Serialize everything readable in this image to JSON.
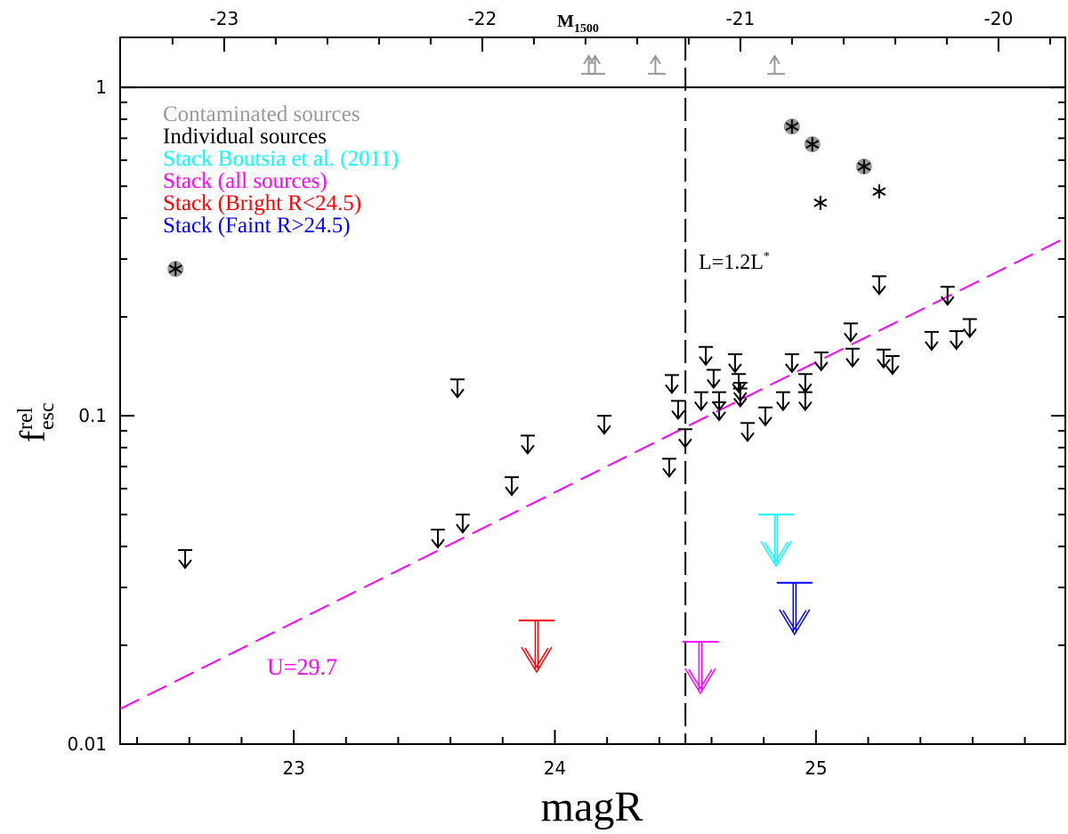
{
  "chart_data": {
    "type": "scatter",
    "x_label": "magR",
    "y_label": {
      "base": "f",
      "sup": "rel",
      "sub": "esc"
    },
    "x2_label": {
      "base": "M",
      "sub": "1500"
    },
    "xlim": [
      22.335,
      25.955
    ],
    "xticks": [
      23,
      24,
      25
    ],
    "xminorticks": [
      22.4,
      22.6,
      22.8,
      23.2,
      23.4,
      23.6,
      23.8,
      24.2,
      24.4,
      24.6,
      24.8,
      25.2,
      25.4,
      25.6,
      25.8
    ],
    "x2lim": [
      -23.403,
      -19.741
    ],
    "x2ticks": [
      -23,
      -22,
      -21,
      -20
    ],
    "x2minorticks": [
      -23.2,
      -22.8,
      -22.6,
      -22.4,
      -22.2,
      -21.8,
      -21.6,
      -21.4,
      -21.2,
      -20.8,
      -20.6,
      -20.4,
      -20.2,
      -19.8
    ],
    "ylim": [
      0.01,
      1.42
    ],
    "yticks": [
      0.01,
      0.1,
      1
    ],
    "yminorticks": [
      0.02,
      0.03,
      0.04,
      0.05,
      0.06,
      0.07,
      0.08,
      0.09,
      0.2,
      0.3,
      0.4,
      0.5,
      0.6,
      0.7,
      0.8,
      0.9
    ],
    "log_y": true,
    "legend": "upper left",
    "series": [
      {
        "name": "Contaminated sources",
        "color": "#999999",
        "marker": "star-circle",
        "x": [
          22.547,
          24.908,
          24.986,
          25.184
        ],
        "values": [
          0.28,
          0.76,
          0.671,
          0.574
        ]
      },
      {
        "color": "#999999",
        "marker": "lower-limit",
        "x": [
          24.135,
          24.159,
          24.39,
          24.847
        ],
        "values": [
          1.1,
          1.1,
          1.1,
          1.1
        ]
      },
      {
        "name": "Individual sources",
        "color": "#000000",
        "marker": "star",
        "x": [
          25.017,
          25.242
        ],
        "values": [
          0.445,
          0.482
        ]
      },
      {
        "color": "#000000",
        "marker": "upper-limit",
        "x": [
          22.584,
          23.627,
          23.552,
          23.647,
          23.835,
          23.896,
          24.189,
          24.448,
          24.438,
          24.472,
          24.499,
          24.56,
          24.578,
          24.608,
          24.629,
          24.629,
          24.69,
          24.704,
          24.71,
          24.71,
          24.738,
          24.806,
          24.874,
          24.908,
          24.959,
          24.959,
          25.02,
          25.133,
          25.14,
          25.242,
          25.259,
          25.293,
          25.443,
          25.504,
          25.538,
          25.589
        ],
        "values": [
          0.039,
          0.129,
          0.045,
          0.05,
          0.065,
          0.087,
          0.1,
          0.133,
          0.074,
          0.111,
          0.091,
          0.118,
          0.162,
          0.138,
          0.118,
          0.11,
          0.154,
          0.134,
          0.126,
          0.121,
          0.095,
          0.106,
          0.118,
          0.154,
          0.134,
          0.118,
          0.156,
          0.191,
          0.16,
          0.266,
          0.159,
          0.152,
          0.18,
          0.247,
          0.181,
          0.197
        ]
      },
      {
        "name": "Stack Boutsia et al. (2011)",
        "color": "#00ffff",
        "marker": "upper-limit-large",
        "x": [
          24.847
        ],
        "values": [
          0.05
        ]
      },
      {
        "name": "Stack (all sources)",
        "color": "#ff00ff",
        "marker": "upper-limit-large",
        "x": [
          24.557
        ],
        "values": [
          0.0205
        ]
      },
      {
        "name": "Stack (Bright R<24.5)",
        "color": "#ff0000",
        "marker": "upper-limit-large",
        "x": [
          23.93
        ],
        "values": [
          0.0238
        ]
      },
      {
        "name": "Stack (Faint R>24.5)",
        "color": "#0000ff",
        "marker": "upper-limit-large",
        "x": [
          24.918
        ],
        "values": [
          0.031
        ]
      }
    ],
    "lines": [
      {
        "color": "#ff00ff",
        "dash": true,
        "x": [
          22.335,
          25.955
        ],
        "values": [
          0.0128,
          0.348
        ]
      }
    ],
    "vlines": [
      {
        "x": 24.5,
        "color": "#000000",
        "dash": true
      }
    ],
    "hlines": [
      {
        "value": 1,
        "color": "#000000"
      }
    ],
    "annotations": [
      {
        "text": "L=1.2L",
        "sup": "*",
        "color": "#000000"
      },
      {
        "text": "U=29.7",
        "color": "#ff00ff"
      }
    ]
  }
}
